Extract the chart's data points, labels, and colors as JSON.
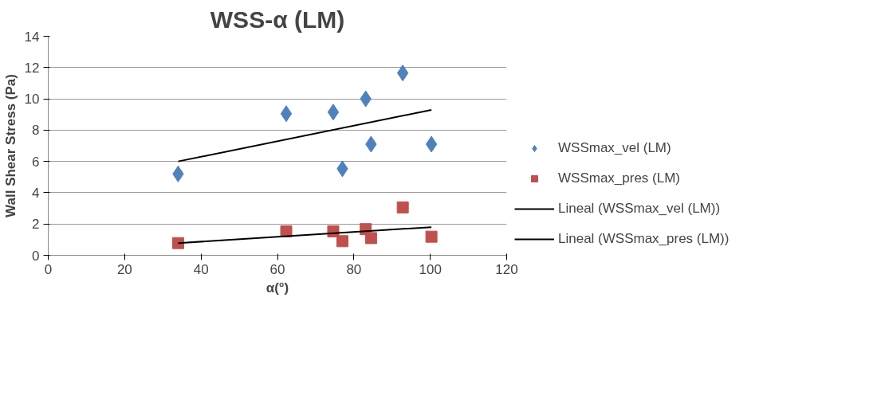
{
  "chart_data": {
    "type": "scatter",
    "title": "WSS-α (LM)",
    "xlabel": "α(°)",
    "ylabel": "Wall Shear Stress (Pa)",
    "xlim": [
      0,
      120
    ],
    "xticks": [
      0,
      20,
      40,
      60,
      80,
      100,
      120
    ],
    "ylim": [
      0,
      14
    ],
    "yticks": [
      0,
      2,
      4,
      6,
      8,
      10,
      12,
      14
    ],
    "grid": "y",
    "legend": "right",
    "series": [
      {
        "name": "WSSmax_vel (LM)",
        "color": "#4f81bd",
        "marker": "diamond",
        "x": [
          34,
          62.3,
          74.6,
          77,
          83.1,
          84.5,
          92.8,
          100.3
        ],
        "values": [
          5.2,
          9.05,
          9.15,
          5.53,
          10.0,
          7.1,
          11.65,
          7.1
        ]
      },
      {
        "name": "WSSmax_pres (LM)",
        "color": "#c0504d",
        "marker": "square",
        "x": [
          34,
          62.3,
          74.6,
          77,
          83.1,
          84.5,
          92.8,
          100.3
        ],
        "values": [
          0.78,
          1.53,
          1.53,
          0.9,
          1.67,
          1.1,
          3.06,
          1.19
        ]
      },
      {
        "name": "Lineal (WSSmax_vel (LM))",
        "type": "line",
        "color": "#000000",
        "x": [
          34,
          100.3
        ],
        "values": [
          6.0,
          9.29
        ]
      },
      {
        "name": "Lineal (WSSmax_pres (LM))",
        "type": "line",
        "color": "#000000",
        "x": [
          34,
          100.3
        ],
        "values": [
          0.78,
          1.8
        ]
      }
    ]
  }
}
